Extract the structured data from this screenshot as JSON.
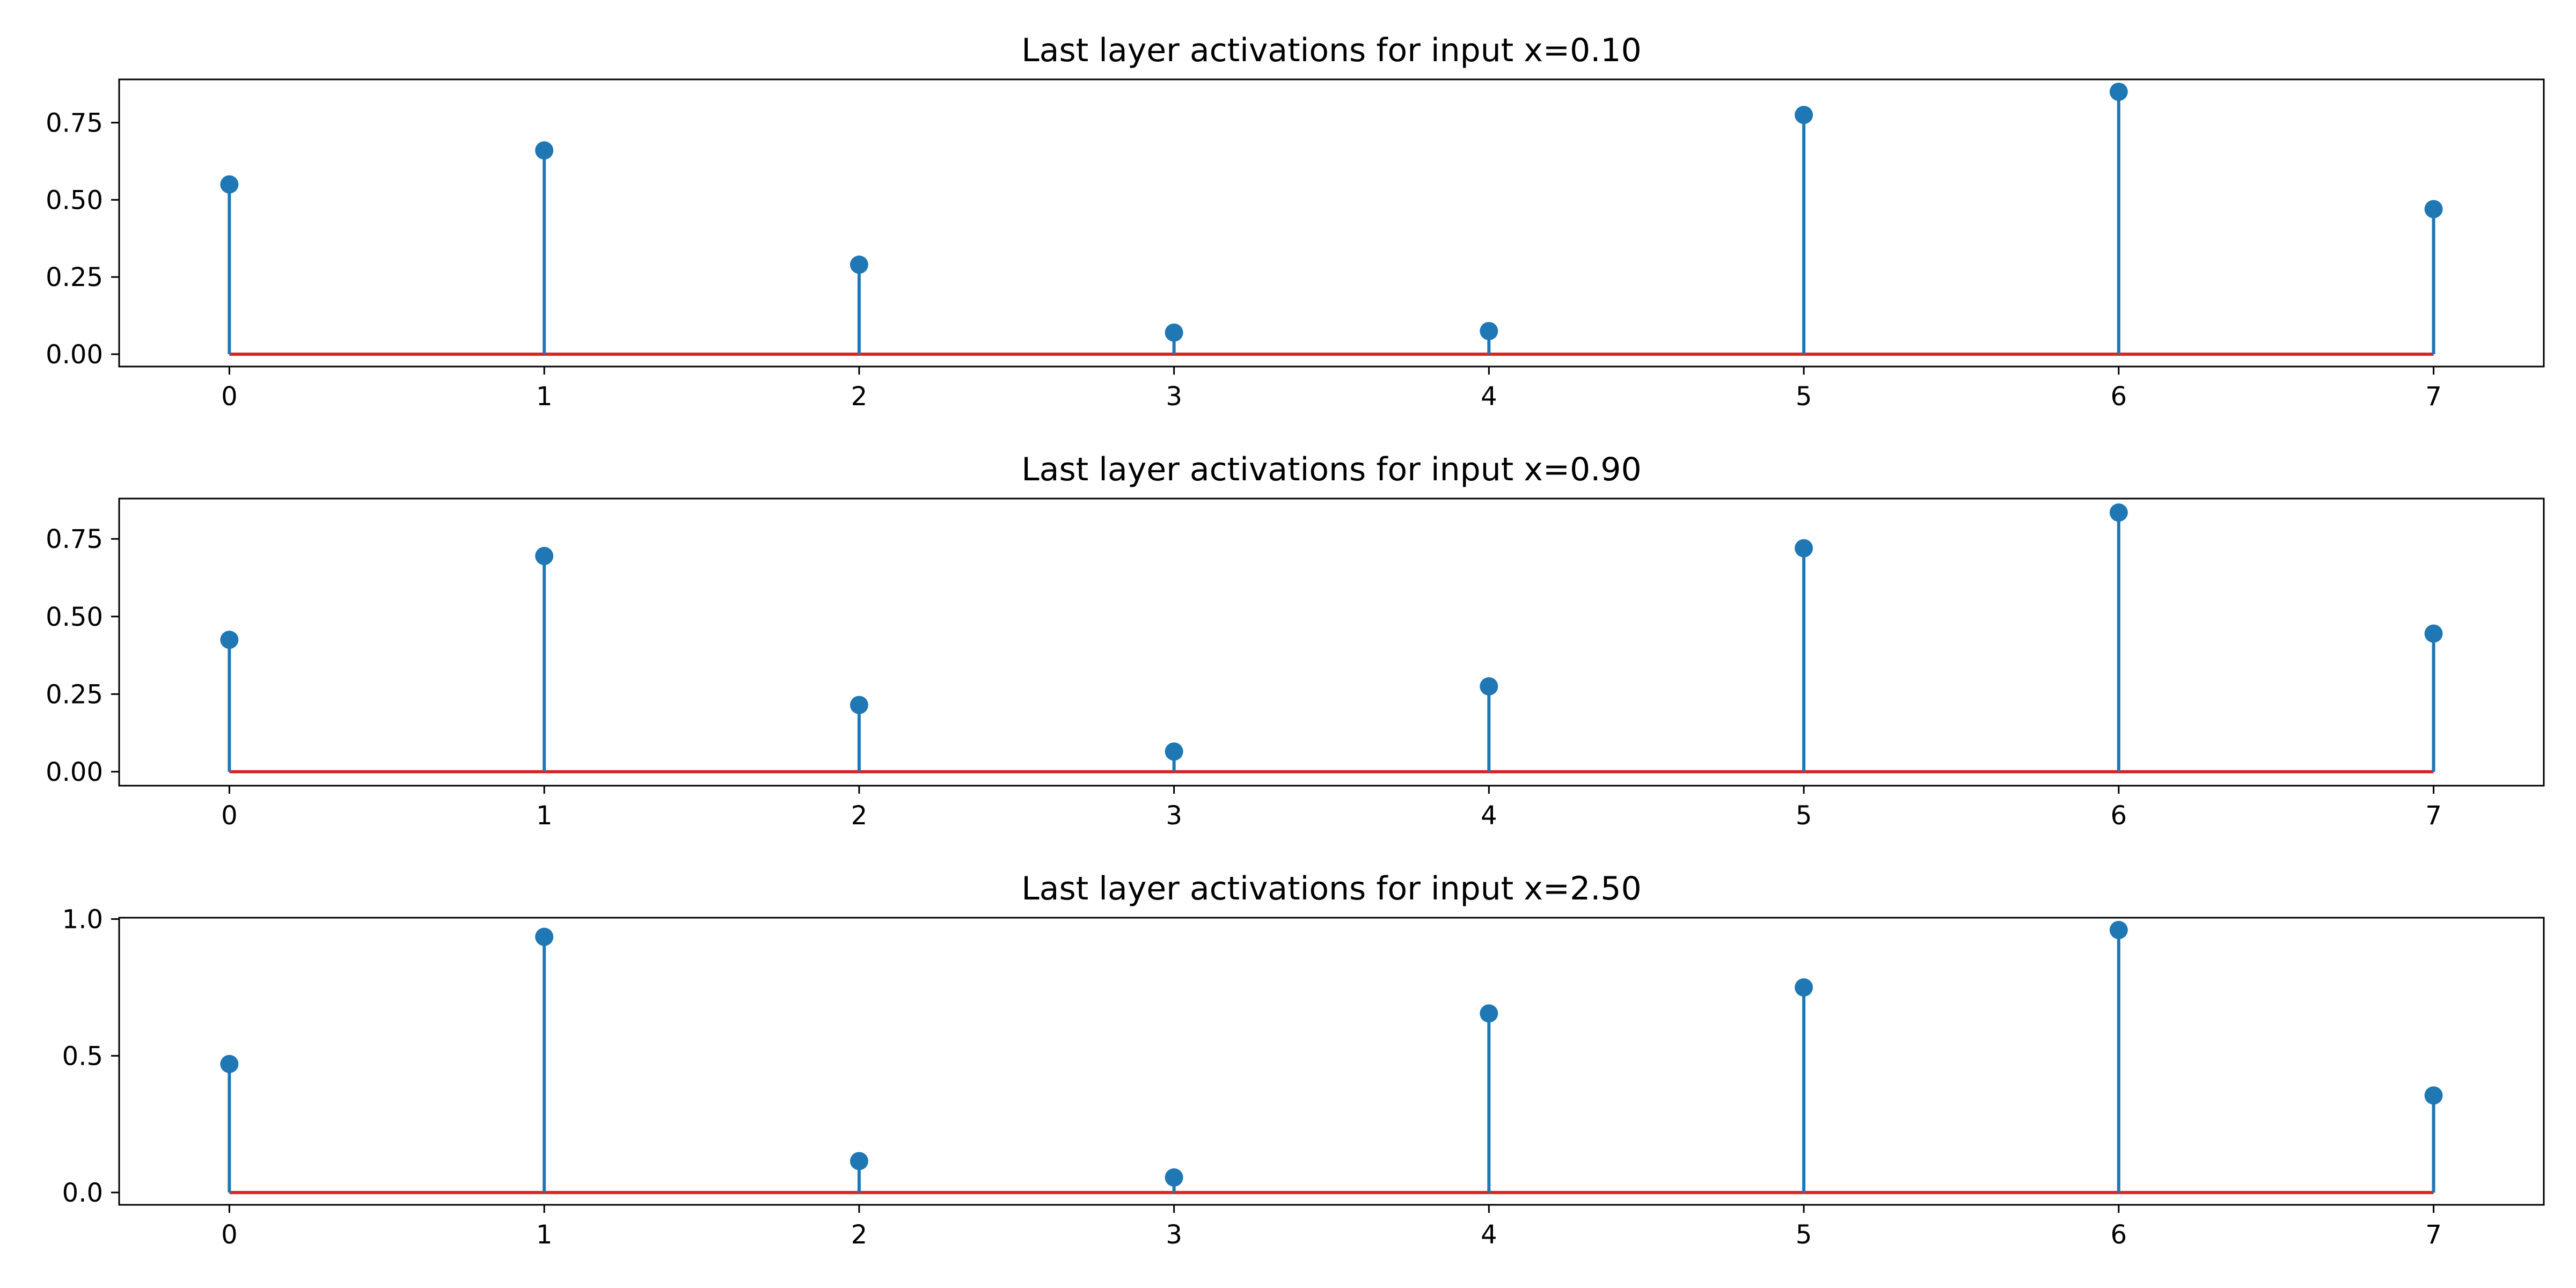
{
  "chart_data": [
    {
      "type": "stem",
      "title": "Last layer activations for input x=0.10",
      "x": [
        0,
        1,
        2,
        3,
        4,
        5,
        6,
        7
      ],
      "values": [
        0.55,
        0.66,
        0.29,
        0.07,
        0.075,
        0.775,
        0.85,
        0.47
      ],
      "xlim": [
        -0.35,
        7.35
      ],
      "ylim": [
        -0.04,
        0.89
      ],
      "yticks": [
        0.0,
        0.25,
        0.5,
        0.75
      ],
      "ytick_labels": [
        "0.00",
        "0.25",
        "0.50",
        "0.75"
      ],
      "xticks": [
        0,
        1,
        2,
        3,
        4,
        5,
        6,
        7
      ],
      "xtick_labels": [
        "0",
        "1",
        "2",
        "3",
        "4",
        "5",
        "6",
        "7"
      ]
    },
    {
      "type": "stem",
      "title": "Last layer activations for input x=0.90",
      "x": [
        0,
        1,
        2,
        3,
        4,
        5,
        6,
        7
      ],
      "values": [
        0.425,
        0.695,
        0.215,
        0.065,
        0.275,
        0.72,
        0.835,
        0.445
      ],
      "xlim": [
        -0.35,
        7.35
      ],
      "ylim": [
        -0.045,
        0.88
      ],
      "yticks": [
        0.0,
        0.25,
        0.5,
        0.75
      ],
      "ytick_labels": [
        "0.00",
        "0.25",
        "0.50",
        "0.75"
      ],
      "xticks": [
        0,
        1,
        2,
        3,
        4,
        5,
        6,
        7
      ],
      "xtick_labels": [
        "0",
        "1",
        "2",
        "3",
        "4",
        "5",
        "6",
        "7"
      ]
    },
    {
      "type": "stem",
      "title": "Last layer activations for input x=2.50",
      "x": [
        0,
        1,
        2,
        3,
        4,
        5,
        6,
        7
      ],
      "values": [
        0.47,
        0.935,
        0.115,
        0.055,
        0.655,
        0.75,
        0.96,
        0.355
      ],
      "xlim": [
        -0.35,
        7.35
      ],
      "ylim": [
        -0.045,
        1.005
      ],
      "yticks": [
        0.0,
        0.5,
        1.0
      ],
      "ytick_labels": [
        "0.0",
        "0.5",
        "1.0"
      ],
      "xticks": [
        0,
        1,
        2,
        3,
        4,
        5,
        6,
        7
      ],
      "xtick_labels": [
        "0",
        "1",
        "2",
        "3",
        "4",
        "5",
        "6",
        "7"
      ]
    }
  ],
  "colors": {
    "stem": "#1f77b4",
    "baseline": "#d62728",
    "axes": "#000000"
  }
}
